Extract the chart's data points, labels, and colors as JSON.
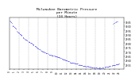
{
  "title": "Milwaukee Barometric Pressure\nper Minute\n(24 Hours)",
  "title_fontsize": 3.2,
  "background_color": "#ffffff",
  "grid_color": "#aaaaaa",
  "dot_color": "#0000dd",
  "dot_size": 0.5,
  "xlim": [
    0,
    1440
  ],
  "ylim": [
    29.5,
    30.1
  ],
  "ytick_labels": [
    "29.55",
    "29.60",
    "29.65",
    "29.70",
    "29.75",
    "29.80",
    "29.85",
    "29.90",
    "29.95",
    "30.00",
    "30.05"
  ],
  "ytick_values": [
    29.55,
    29.6,
    29.65,
    29.7,
    29.75,
    29.8,
    29.85,
    29.9,
    29.95,
    30.0,
    30.05
  ],
  "xtick_positions": [
    0,
    60,
    120,
    180,
    240,
    300,
    360,
    420,
    480,
    540,
    600,
    660,
    720,
    780,
    840,
    900,
    960,
    1020,
    1080,
    1140,
    1200,
    1260,
    1320,
    1380
  ],
  "xtick_labels": [
    "0",
    "1",
    "2",
    "3",
    "4",
    "5",
    "6",
    "7",
    "8",
    "9",
    "10",
    "11",
    "12",
    "13",
    "14",
    "15",
    "16",
    "17",
    "18",
    "19",
    "20",
    "21",
    "22",
    "23"
  ],
  "vgrid_positions": [
    120,
    240,
    360,
    480,
    600,
    720,
    840,
    960,
    1080,
    1200,
    1320
  ],
  "segments": [
    {
      "x_start": 0,
      "x_end": 30,
      "y_start": 30.06,
      "y_end": 30.04
    },
    {
      "x_start": 40,
      "x_end": 90,
      "y_start": 30.01,
      "y_end": 29.97
    },
    {
      "x_start": 100,
      "x_end": 160,
      "y_start": 29.94,
      "y_end": 29.89
    },
    {
      "x_start": 170,
      "x_end": 230,
      "y_start": 29.87,
      "y_end": 29.83
    },
    {
      "x_start": 240,
      "x_end": 310,
      "y_start": 29.82,
      "y_end": 29.78
    },
    {
      "x_start": 320,
      "x_end": 390,
      "y_start": 29.76,
      "y_end": 29.72
    },
    {
      "x_start": 400,
      "x_end": 480,
      "y_start": 29.71,
      "y_end": 29.68
    },
    {
      "x_start": 500,
      "x_end": 560,
      "y_start": 29.67,
      "y_end": 29.65
    },
    {
      "x_start": 570,
      "x_end": 650,
      "y_start": 29.65,
      "y_end": 29.63
    },
    {
      "x_start": 660,
      "x_end": 750,
      "y_start": 29.62,
      "y_end": 29.59
    },
    {
      "x_start": 760,
      "x_end": 860,
      "y_start": 29.58,
      "y_end": 29.56
    },
    {
      "x_start": 870,
      "x_end": 970,
      "y_start": 29.55,
      "y_end": 29.53
    },
    {
      "x_start": 980,
      "x_end": 1080,
      "y_start": 29.52,
      "y_end": 29.51
    },
    {
      "x_start": 1090,
      "x_end": 1180,
      "y_start": 29.51,
      "y_end": 29.51
    },
    {
      "x_start": 1190,
      "x_end": 1270,
      "y_start": 29.52,
      "y_end": 29.53
    },
    {
      "x_start": 1290,
      "x_end": 1380,
      "y_start": 29.54,
      "y_end": 29.55
    },
    {
      "x_start": 1300,
      "x_end": 1360,
      "y_start": 30.03,
      "y_end": 30.06
    }
  ]
}
